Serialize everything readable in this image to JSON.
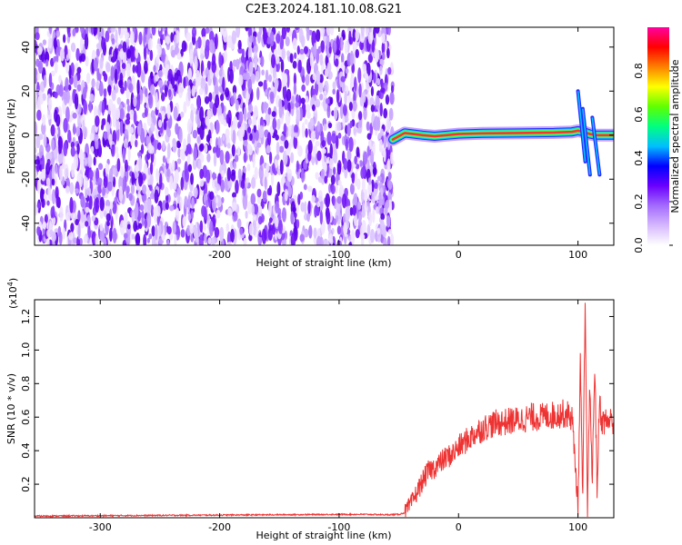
{
  "chart_data": [
    {
      "type": "heatmap",
      "title": "C2E3.2024.181.10.08.G21",
      "xlabel": "Height of straight line (km)",
      "ylabel": "Frequency (Hz)",
      "xlim": [
        -355,
        130
      ],
      "ylim": [
        -50,
        49
      ],
      "xticks": [
        -300,
        -200,
        -100,
        0,
        100
      ],
      "yticks": [
        -40,
        -20,
        0,
        20,
        40
      ],
      "noise_region_x": [
        -355,
        -55
      ],
      "signal_track": {
        "x": [
          -55,
          -45,
          -30,
          -20,
          -10,
          0,
          20,
          50,
          80,
          95,
          100,
          105,
          110,
          115,
          120,
          130
        ],
        "freq": [
          -2,
          1,
          0,
          -0.5,
          0,
          0.5,
          0.8,
          1,
          1.2,
          1.5,
          2,
          1.5,
          0.5,
          0,
          0,
          0
        ]
      },
      "colorbar": {
        "label": "Normalized spectral amplitude",
        "range": [
          0,
          1
        ],
        "ticks": [
          0.0,
          0.2,
          0.4,
          0.6,
          0.8
        ],
        "tick_labels": [
          "0.0",
          "0.2",
          "0.4",
          "0.6",
          "0.8"
        ],
        "colormap": [
          "#ffffff",
          "#d6b8ff",
          "#a36bff",
          "#6a00ff",
          "#0000ff",
          "#00c0ff",
          "#00ff80",
          "#60ff00",
          "#ffff00",
          "#ff8000",
          "#ff0000",
          "#ff00a0"
        ]
      }
    },
    {
      "type": "line",
      "xlabel": "Height of straight line (km)",
      "ylabel": "SNR (10 * v/v)",
      "multiplier_label": "(x10",
      "multiplier_exponent": "4",
      "multiplier_close": ")",
      "xlim": [
        -355,
        130
      ],
      "ylim": [
        0,
        1.3
      ],
      "xticks": [
        -300,
        -200,
        -100,
        0,
        100
      ],
      "yticks": [
        0.2,
        0.4,
        0.6,
        0.8,
        1.0,
        1.2
      ],
      "ytick_labels": [
        "0.2",
        "0.4",
        "0.6",
        "0.8",
        "1.0",
        "1.2"
      ],
      "series": [
        {
          "color": "#ee3333",
          "x": [
            -355,
            -300,
            -250,
            -200,
            -150,
            -100,
            -80,
            -60,
            -50,
            -45,
            -40,
            -35,
            -30,
            -25,
            -20,
            -15,
            -10,
            -5,
            0,
            5,
            10,
            15,
            20,
            25,
            30,
            35,
            40,
            45,
            50,
            55,
            60,
            65,
            70,
            75,
            80,
            85,
            90,
            95,
            98,
            100,
            102,
            104,
            106,
            108,
            110,
            112,
            114,
            116,
            118,
            120,
            125,
            130
          ],
          "y": [
            0.01,
            0.012,
            0.014,
            0.016,
            0.018,
            0.02,
            0.02,
            0.018,
            0.02,
            0.03,
            0.08,
            0.15,
            0.22,
            0.28,
            0.3,
            0.33,
            0.36,
            0.38,
            0.42,
            0.45,
            0.48,
            0.51,
            0.53,
            0.55,
            0.56,
            0.57,
            0.57,
            0.58,
            0.58,
            0.59,
            0.6,
            0.6,
            0.6,
            0.61,
            0.61,
            0.62,
            0.62,
            0.6,
            0.3,
            0.05,
            0.9,
            0.1,
            1.25,
            0.05,
            0.8,
            0.2,
            0.95,
            0.15,
            0.7,
            0.57,
            0.58,
            0.58
          ]
        }
      ]
    }
  ]
}
